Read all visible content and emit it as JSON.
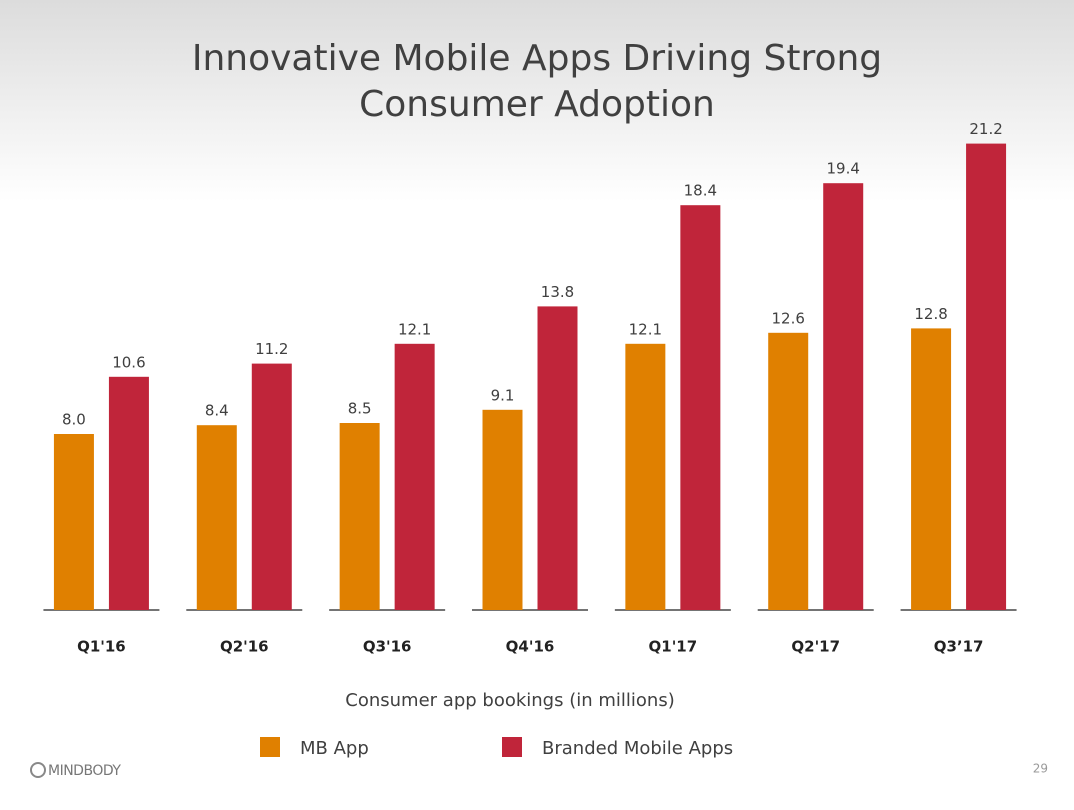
{
  "chart_data": {
    "type": "bar",
    "title": [
      "Innovative Mobile Apps Driving Strong",
      "Consumer Adoption"
    ],
    "categories": [
      "Q1'16",
      "Q2'16",
      "Q3'16",
      "Q4'16",
      "Q1'17",
      "Q2'17",
      "Q3’17"
    ],
    "series": [
      {
        "name": "MB App",
        "color": "#e08000",
        "values": [
          8.0,
          8.4,
          8.5,
          9.1,
          12.1,
          12.6,
          12.8
        ],
        "value_labels": [
          "8.0",
          "8.4",
          "8.5",
          "9.1",
          "12.1",
          "12.6",
          "12.8"
        ]
      },
      {
        "name": "Branded Mobile Apps",
        "color": "#c0253a",
        "values": [
          10.6,
          11.2,
          12.1,
          13.8,
          18.4,
          19.4,
          21.2
        ],
        "value_labels": [
          "10.6",
          "11.2",
          "12.1",
          "13.8",
          "18.4",
          "19.4",
          "21.2"
        ]
      }
    ],
    "xlabel": "Consumer app bookings (in millions)",
    "ylim": [
      0,
      22
    ]
  },
  "footer": {
    "logo": "MINDBODY",
    "page": 29
  }
}
